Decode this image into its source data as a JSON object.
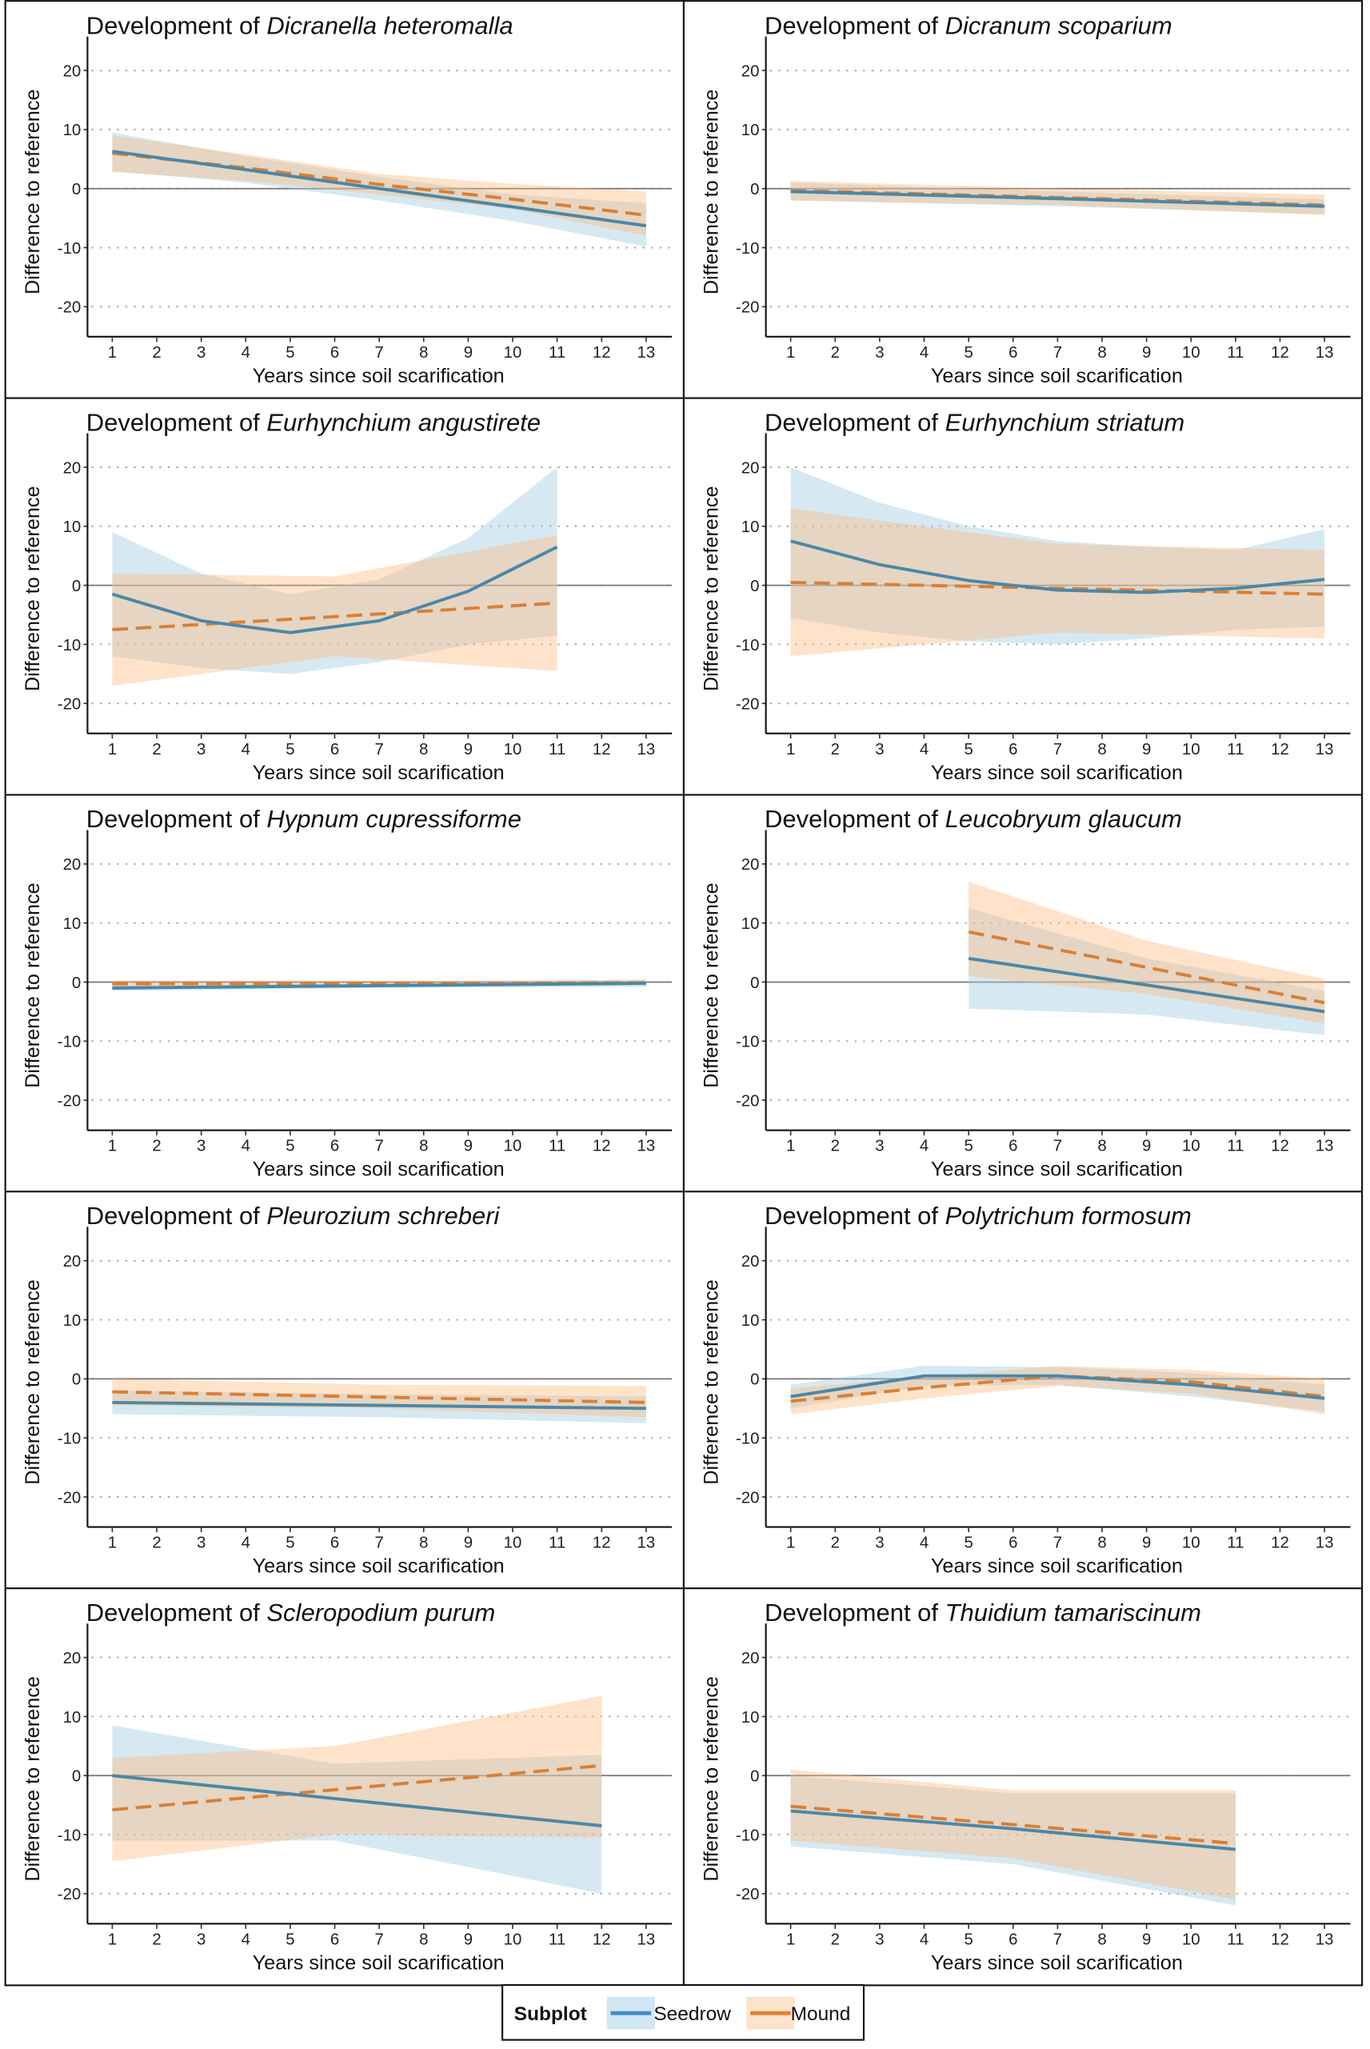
{
  "legend": {
    "title": "Subplot",
    "items": [
      "Seedrow",
      "Mound"
    ]
  },
  "colors": {
    "seedrow_line": "#4a87a8",
    "mound_line": "#d97f35",
    "seedrow_band": "#9ecae1",
    "mound_band": "#fdb77a"
  },
  "chart_data": {
    "type": "line",
    "title_prefix": "Development of ",
    "xlabel": "Years since soil scarification",
    "ylabel": "Difference to reference",
    "xticks": [
      1,
      2,
      3,
      4,
      5,
      6,
      7,
      8,
      9,
      10,
      11,
      12,
      13
    ],
    "yticks": [
      20,
      10,
      0,
      -10,
      -20
    ],
    "xlim": [
      0.45,
      13.6
    ],
    "ylim": [
      -25.2,
      25.8
    ],
    "grid": "horizontal dotted",
    "legend_position": "bottom",
    "panels": [
      {
        "species": "Dicranella heteromalla",
        "series": [
          {
            "name": "Seedrow",
            "x": [
              1,
              4,
              7,
              10,
              13
            ],
            "y": [
              6.3,
              3.2,
              0,
              -3.1,
              -6.3
            ],
            "lower": [
              3,
              1,
              -2,
              -5.5,
              -9.8
            ],
            "upper": [
              9.5,
              5.5,
              2,
              -1,
              -2.5
            ]
          },
          {
            "name": "Mound",
            "x": [
              1,
              4,
              7,
              10,
              13
            ],
            "y": [
              6,
              3.5,
              0.7,
              -1.8,
              -4.5
            ],
            "lower": [
              2.8,
              1.3,
              -1,
              -3.5,
              -8
            ],
            "upper": [
              9,
              5.8,
              2.5,
              0.8,
              -0.5
            ]
          }
        ]
      },
      {
        "species": "Dicranum scoparium",
        "series": [
          {
            "name": "Seedrow",
            "x": [
              1,
              7,
              13
            ],
            "y": [
              -0.5,
              -1.7,
              -3
            ],
            "lower": [
              -2,
              -3,
              -4.3
            ],
            "upper": [
              1,
              -0.5,
              -1.8
            ]
          },
          {
            "name": "Mound",
            "x": [
              1,
              7,
              13
            ],
            "y": [
              -0.3,
              -1.5,
              -2.8
            ],
            "lower": [
              -2,
              -2.8,
              -4.5
            ],
            "upper": [
              1.3,
              0,
              -1
            ]
          }
        ]
      },
      {
        "species": "Eurhynchium angustirete",
        "series": [
          {
            "name": "Seedrow",
            "x": [
              1,
              3,
              5,
              7,
              9,
              11
            ],
            "y": [
              -1.5,
              -6,
              -8,
              -6,
              -1,
              6.5
            ],
            "lower": [
              -12,
              -14,
              -15,
              -13,
              -10,
              -8.5
            ],
            "upper": [
              9,
              2,
              -1.5,
              1,
              8,
              20
            ]
          },
          {
            "name": "Mound",
            "x": [
              1,
              6,
              11
            ],
            "y": [
              -7.5,
              -5.3,
              -3
            ],
            "lower": [
              -17,
              -12,
              -14.5
            ],
            "upper": [
              2,
              1.5,
              8.5
            ]
          }
        ]
      },
      {
        "species": "Eurhynchium striatum",
        "series": [
          {
            "name": "Seedrow",
            "x": [
              1,
              3,
              5,
              7,
              9,
              11,
              13
            ],
            "y": [
              7.5,
              3.5,
              0.8,
              -0.8,
              -1.2,
              -0.5,
              1
            ],
            "lower": [
              -5.5,
              -8,
              -9.5,
              -10,
              -9,
              -7.5,
              -7
            ],
            "upper": [
              20,
              14,
              10,
              7.5,
              6.5,
              6,
              9.5
            ]
          },
          {
            "name": "Mound",
            "x": [
              1,
              7,
              13
            ],
            "y": [
              0.5,
              -0.5,
              -1.5
            ],
            "lower": [
              -12,
              -8,
              -9
            ],
            "upper": [
              13,
              7,
              6
            ]
          }
        ]
      },
      {
        "species": "Hypnum cupressiforme",
        "series": [
          {
            "name": "Seedrow",
            "x": [
              1,
              7,
              13
            ],
            "y": [
              -1,
              -0.6,
              -0.2
            ],
            "lower": [
              -1.5,
              -1,
              -0.8
            ],
            "upper": [
              -0.5,
              -0.2,
              0.4
            ]
          },
          {
            "name": "Mound",
            "x": [
              1,
              7,
              13
            ],
            "y": [
              -0.3,
              -0.2,
              -0.1
            ],
            "lower": [
              -0.9,
              -0.6,
              -0.6
            ],
            "upper": [
              0.3,
              0.2,
              0.4
            ]
          }
        ]
      },
      {
        "species": "Leucobryum glaucum",
        "series": [
          {
            "name": "Seedrow",
            "x": [
              5,
              9,
              13
            ],
            "y": [
              4,
              -0.5,
              -5
            ],
            "lower": [
              -4.5,
              -5.5,
              -9
            ],
            "upper": [
              12.5,
              4,
              -1.5
            ]
          },
          {
            "name": "Mound",
            "x": [
              5,
              9,
              13
            ],
            "y": [
              8.5,
              2.5,
              -3.5
            ],
            "lower": [
              1,
              -2,
              -7
            ],
            "upper": [
              17,
              7,
              0.5
            ]
          }
        ]
      },
      {
        "species": "Pleurozium schreberi",
        "series": [
          {
            "name": "Seedrow",
            "x": [
              1,
              7,
              13
            ],
            "y": [
              -4,
              -4.5,
              -5
            ],
            "lower": [
              -6,
              -6.5,
              -7.5
            ],
            "upper": [
              -2,
              -2.6,
              -3
            ]
          },
          {
            "name": "Mound",
            "x": [
              1,
              7,
              13
            ],
            "y": [
              -2.2,
              -3.1,
              -4
            ],
            "lower": [
              -4.5,
              -5,
              -6.5
            ],
            "upper": [
              0,
              -1,
              -1.2
            ]
          }
        ]
      },
      {
        "species": "Polytrichum formosum",
        "series": [
          {
            "name": "Seedrow",
            "x": [
              1,
              4,
              7,
              10,
              13
            ],
            "y": [
              -3,
              0.5,
              0.5,
              -1,
              -3.3
            ],
            "lower": [
              -5,
              -1.2,
              -1,
              -3,
              -5.5
            ],
            "upper": [
              -1,
              2.2,
              2,
              1,
              -1
            ]
          },
          {
            "name": "Mound",
            "x": [
              1,
              4,
              7,
              10,
              13
            ],
            "y": [
              -3.8,
              -1.5,
              0.5,
              -0.5,
              -3
            ],
            "lower": [
              -6,
              -3.3,
              -1.2,
              -2.5,
              -6
            ],
            "upper": [
              -1.6,
              0.3,
              2.2,
              1.5,
              0
            ]
          }
        ]
      },
      {
        "species": "Scleropodium purum",
        "series": [
          {
            "name": "Seedrow",
            "x": [
              1,
              6,
              12
            ],
            "y": [
              0,
              -3.9,
              -8.5
            ],
            "lower": [
              -11,
              -11,
              -20
            ],
            "upper": [
              8.5,
              2,
              3.5
            ]
          },
          {
            "name": "Mound",
            "x": [
              1,
              6,
              12
            ],
            "y": [
              -5.8,
              -2.4,
              1.7
            ],
            "lower": [
              -14.5,
              -10,
              -10.5
            ],
            "upper": [
              3,
              5,
              13.5
            ]
          }
        ]
      },
      {
        "species": "Thuidium tamariscinum",
        "series": [
          {
            "name": "Seedrow",
            "x": [
              1,
              6,
              11
            ],
            "y": [
              -6,
              -9,
              -12.5
            ],
            "lower": [
              -12,
              -15,
              -22
            ],
            "upper": [
              0,
              -3,
              -3
            ]
          },
          {
            "name": "Mound",
            "x": [
              1,
              6,
              11
            ],
            "y": [
              -5.2,
              -8.3,
              -11.5
            ],
            "lower": [
              -11,
              -14,
              -21
            ],
            "upper": [
              1,
              -2.5,
              -2.5
            ]
          }
        ]
      }
    ]
  }
}
